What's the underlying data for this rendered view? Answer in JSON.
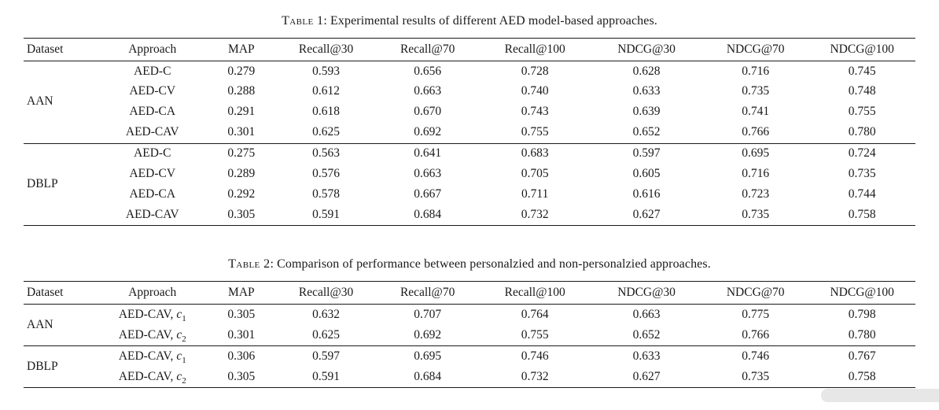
{
  "page": {
    "background": "#ffffff",
    "text_color": "#1a1a1a"
  },
  "tables": [
    {
      "caption": {
        "label": "Table 1",
        "text": ": Experimental results of different AED model-based approaches."
      },
      "columns": [
        "Dataset",
        "Approach",
        "MAP",
        "Recall@30",
        "Recall@70",
        "Recall@100",
        "NDCG@30",
        "NDCG@70",
        "NDCG@100"
      ],
      "groups": [
        {
          "dataset": "AAN",
          "rows": [
            {
              "approach": "AED-C",
              "values": [
                "0.279",
                "0.593",
                "0.656",
                "0.728",
                "0.628",
                "0.716",
                "0.745"
              ]
            },
            {
              "approach": "AED-CV",
              "values": [
                "0.288",
                "0.612",
                "0.663",
                "0.740",
                "0.633",
                "0.735",
                "0.748"
              ]
            },
            {
              "approach": "AED-CA",
              "values": [
                "0.291",
                "0.618",
                "0.670",
                "0.743",
                "0.639",
                "0.741",
                "0.755"
              ]
            },
            {
              "approach": "AED-CAV",
              "values": [
                "0.301",
                "0.625",
                "0.692",
                "0.755",
                "0.652",
                "0.766",
                "0.780"
              ]
            }
          ]
        },
        {
          "dataset": "DBLP",
          "rows": [
            {
              "approach": "AED-C",
              "values": [
                "0.275",
                "0.563",
                "0.641",
                "0.683",
                "0.597",
                "0.695",
                "0.724"
              ]
            },
            {
              "approach": "AED-CV",
              "values": [
                "0.289",
                "0.576",
                "0.663",
                "0.705",
                "0.605",
                "0.716",
                "0.735"
              ]
            },
            {
              "approach": "AED-CA",
              "values": [
                "0.292",
                "0.578",
                "0.667",
                "0.711",
                "0.616",
                "0.723",
                "0.744"
              ]
            },
            {
              "approach": "AED-CAV",
              "values": [
                "0.305",
                "0.591",
                "0.684",
                "0.732",
                "0.627",
                "0.735",
                "0.758"
              ]
            }
          ]
        }
      ]
    },
    {
      "caption": {
        "label": "Table 2",
        "text": ": Comparison of performance between personalzied and non-personalzied approaches."
      },
      "columns": [
        "Dataset",
        "Approach",
        "MAP",
        "Recall@30",
        "Recall@70",
        "Recall@100",
        "NDCG@30",
        "NDCG@70",
        "NDCG@100"
      ],
      "groups": [
        {
          "dataset": "AAN",
          "rows": [
            {
              "approach": "AED-CAV,",
              "var": "c",
              "sub": "1",
              "values": [
                "0.305",
                "0.632",
                "0.707",
                "0.764",
                "0.663",
                "0.775",
                "0.798"
              ]
            },
            {
              "approach": "AED-CAV,",
              "var": "c",
              "sub": "2",
              "values": [
                "0.301",
                "0.625",
                "0.692",
                "0.755",
                "0.652",
                "0.766",
                "0.780"
              ]
            }
          ]
        },
        {
          "dataset": "DBLP",
          "rows": [
            {
              "approach": "AED-CAV,",
              "var": "c",
              "sub": "1",
              "values": [
                "0.306",
                "0.597",
                "0.695",
                "0.746",
                "0.633",
                "0.746",
                "0.767"
              ]
            },
            {
              "approach": "AED-CAV,",
              "var": "c",
              "sub": "2",
              "values": [
                "0.305",
                "0.591",
                "0.684",
                "0.732",
                "0.627",
                "0.735",
                "0.758"
              ]
            }
          ]
        }
      ]
    }
  ]
}
